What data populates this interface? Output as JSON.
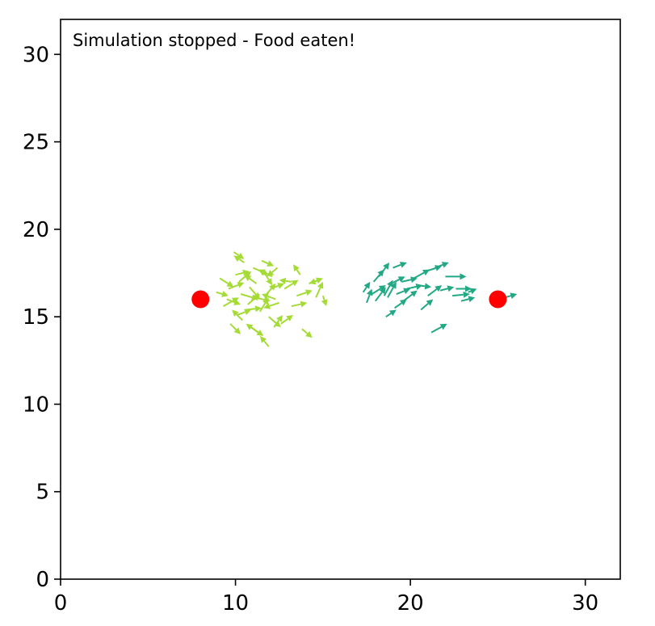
{
  "chart_data": {
    "type": "quiver",
    "title": "",
    "xlabel": "",
    "ylabel": "",
    "xlim": [
      0,
      32
    ],
    "ylim": [
      0,
      32
    ],
    "grid": false,
    "x_ticks": [
      0,
      10,
      20,
      30
    ],
    "x_tick_labels": [
      "0",
      "10",
      "20",
      "30"
    ],
    "y_ticks": [
      0,
      5,
      10,
      15,
      20,
      25,
      30
    ],
    "y_tick_labels": [
      "0",
      "5",
      "10",
      "15",
      "20",
      "25",
      "30"
    ],
    "annotation": "Simulation stopped - Food eaten!",
    "food": {
      "color": "#ff0000",
      "points": [
        {
          "x": 8,
          "y": 16
        },
        {
          "x": 25,
          "y": 16
        }
      ]
    },
    "series": [
      {
        "color": "#a5db36",
        "agents": [
          {
            "x": 9.6,
            "y": 16.6,
            "u": 0.9,
            "v": 0.35
          },
          {
            "x": 10.0,
            "y": 17.4,
            "u": 0.8,
            "v": 0.2
          },
          {
            "x": 10.3,
            "y": 16.3,
            "u": 1.0,
            "v": -0.3
          },
          {
            "x": 10.7,
            "y": 15.7,
            "u": 0.7,
            "v": 0.6
          },
          {
            "x": 10.1,
            "y": 15.1,
            "u": 0.8,
            "v": 0.3
          },
          {
            "x": 11.2,
            "y": 16.9,
            "u": -0.7,
            "v": 0.5
          },
          {
            "x": 11.0,
            "y": 17.8,
            "u": 0.9,
            "v": -0.4
          },
          {
            "x": 10.5,
            "y": 18.1,
            "u": -0.6,
            "v": 0.4
          },
          {
            "x": 11.7,
            "y": 16.2,
            "u": 0.6,
            "v": 0.7
          },
          {
            "x": 12.1,
            "y": 17.3,
            "u": -0.8,
            "v": 0.4
          },
          {
            "x": 11.4,
            "y": 15.3,
            "u": 0.5,
            "v": 0.8
          },
          {
            "x": 12.5,
            "y": 15.8,
            "u": -0.9,
            "v": -0.3
          },
          {
            "x": 9.1,
            "y": 17.2,
            "u": 0.8,
            "v": -0.5
          },
          {
            "x": 9.7,
            "y": 14.6,
            "u": 0.6,
            "v": -0.6
          },
          {
            "x": 10.4,
            "y": 14.8,
            "u": -0.6,
            "v": 0.6
          },
          {
            "x": 11.9,
            "y": 13.3,
            "u": -0.5,
            "v": 0.6
          },
          {
            "x": 11.3,
            "y": 14.1,
            "u": -0.7,
            "v": 0.5
          },
          {
            "x": 12.6,
            "y": 14.6,
            "u": 0.7,
            "v": 0.5
          },
          {
            "x": 12.8,
            "y": 16.6,
            "u": 0.8,
            "v": 0.5
          },
          {
            "x": 13.2,
            "y": 15.6,
            "u": 0.9,
            "v": 0.2
          },
          {
            "x": 13.8,
            "y": 14.3,
            "u": 0.6,
            "v": -0.5
          },
          {
            "x": 13.7,
            "y": 17.4,
            "u": -0.4,
            "v": 0.6
          },
          {
            "x": 14.2,
            "y": 16.9,
            "u": 0.8,
            "v": 0.3
          },
          {
            "x": 14.6,
            "y": 16.1,
            "u": 0.4,
            "v": 0.9
          },
          {
            "x": 15.0,
            "y": 16.2,
            "u": 0.2,
            "v": -0.6
          },
          {
            "x": 14.8,
            "y": 17.1,
            "u": -0.6,
            "v": -0.2
          },
          {
            "x": 13.5,
            "y": 16.2,
            "u": 0.9,
            "v": 0.3
          },
          {
            "x": 13.2,
            "y": 17.0,
            "u": -0.7,
            "v": 0.1
          },
          {
            "x": 8.9,
            "y": 16.4,
            "u": 0.7,
            "v": -0.2
          },
          {
            "x": 9.3,
            "y": 15.6,
            "u": 0.9,
            "v": 0.5
          },
          {
            "x": 10.8,
            "y": 16.7,
            "u": 0.6,
            "v": -0.7
          },
          {
            "x": 11.6,
            "y": 17.6,
            "u": 0.5,
            "v": -0.8
          },
          {
            "x": 12.3,
            "y": 16.0,
            "u": -0.8,
            "v": 0.3
          },
          {
            "x": 9.9,
            "y": 18.7,
            "u": 0.6,
            "v": -0.4
          },
          {
            "x": 10.6,
            "y": 15.4,
            "u": 0.9,
            "v": 0.1
          },
          {
            "x": 11.9,
            "y": 15.0,
            "u": 0.7,
            "v": -0.6
          },
          {
            "x": 12.2,
            "y": 14.4,
            "u": 0.5,
            "v": 0.7
          },
          {
            "x": 11.1,
            "y": 16.1,
            "u": 0.9,
            "v": -0.2
          },
          {
            "x": 10.2,
            "y": 17.0,
            "u": 0.7,
            "v": 0.6
          },
          {
            "x": 12.4,
            "y": 17.8,
            "u": -0.6,
            "v": -0.5
          },
          {
            "x": 12.0,
            "y": 16.6,
            "u": 0.8,
            "v": 0.3
          },
          {
            "x": 10.9,
            "y": 14.4,
            "u": 0.7,
            "v": -0.5
          },
          {
            "x": 9.5,
            "y": 16.0,
            "u": 0.8,
            "v": -0.3
          },
          {
            "x": 11.5,
            "y": 18.2,
            "u": 0.7,
            "v": -0.3
          }
        ]
      },
      {
        "color": "#22a884",
        "agents": [
          {
            "x": 17.5,
            "y": 15.8,
            "u": 0.3,
            "v": 0.8
          },
          {
            "x": 17.3,
            "y": 16.4,
            "u": 0.4,
            "v": 0.6
          },
          {
            "x": 17.8,
            "y": 16.3,
            "u": 0.8,
            "v": 0.5
          },
          {
            "x": 18.0,
            "y": 15.9,
            "u": 0.6,
            "v": 0.8
          },
          {
            "x": 18.5,
            "y": 16.2,
            "u": 0.5,
            "v": 0.9
          },
          {
            "x": 18.2,
            "y": 17.3,
            "u": 0.6,
            "v": 0.8
          },
          {
            "x": 18.9,
            "y": 16.9,
            "u": 0.8,
            "v": 0.4
          },
          {
            "x": 19.2,
            "y": 16.3,
            "u": 0.8,
            "v": 0.3
          },
          {
            "x": 19.5,
            "y": 17.0,
            "u": 0.9,
            "v": 0.2
          },
          {
            "x": 19.1,
            "y": 15.5,
            "u": 0.7,
            "v": 0.5
          },
          {
            "x": 19.8,
            "y": 16.6,
            "u": 0.9,
            "v": 0.2
          },
          {
            "x": 20.2,
            "y": 17.2,
            "u": 0.9,
            "v": 0.5
          },
          {
            "x": 20.6,
            "y": 15.4,
            "u": 0.7,
            "v": 0.6
          },
          {
            "x": 20.9,
            "y": 17.6,
            "u": 0.9,
            "v": 0.3
          },
          {
            "x": 21.0,
            "y": 16.2,
            "u": 0.8,
            "v": 0.6
          },
          {
            "x": 21.4,
            "y": 17.8,
            "u": 0.8,
            "v": 0.3
          },
          {
            "x": 21.7,
            "y": 16.5,
            "u": 0.8,
            "v": 0.2
          },
          {
            "x": 22.0,
            "y": 17.3,
            "u": 1.2,
            "v": 0.0
          },
          {
            "x": 22.4,
            "y": 16.2,
            "u": 1.0,
            "v": 0.1
          },
          {
            "x": 22.6,
            "y": 16.6,
            "u": 0.9,
            "v": 0.0
          },
          {
            "x": 22.9,
            "y": 15.9,
            "u": 0.8,
            "v": 0.2
          },
          {
            "x": 23.3,
            "y": 16.4,
            "u": 0.5,
            "v": 0.2
          },
          {
            "x": 25.4,
            "y": 16.1,
            "u": 0.7,
            "v": 0.2
          },
          {
            "x": 21.2,
            "y": 14.1,
            "u": 0.9,
            "v": 0.5
          },
          {
            "x": 19.0,
            "y": 17.8,
            "u": 0.8,
            "v": 0.3
          },
          {
            "x": 18.6,
            "y": 15.0,
            "u": 0.6,
            "v": 0.4
          },
          {
            "x": 17.9,
            "y": 17.0,
            "u": 0.6,
            "v": 0.7
          },
          {
            "x": 18.7,
            "y": 16.1,
            "u": 0.5,
            "v": 0.9
          },
          {
            "x": 19.6,
            "y": 15.9,
            "u": 0.8,
            "v": 0.6
          },
          {
            "x": 20.4,
            "y": 16.8,
            "u": 0.8,
            "v": -0.1
          }
        ]
      }
    ]
  }
}
